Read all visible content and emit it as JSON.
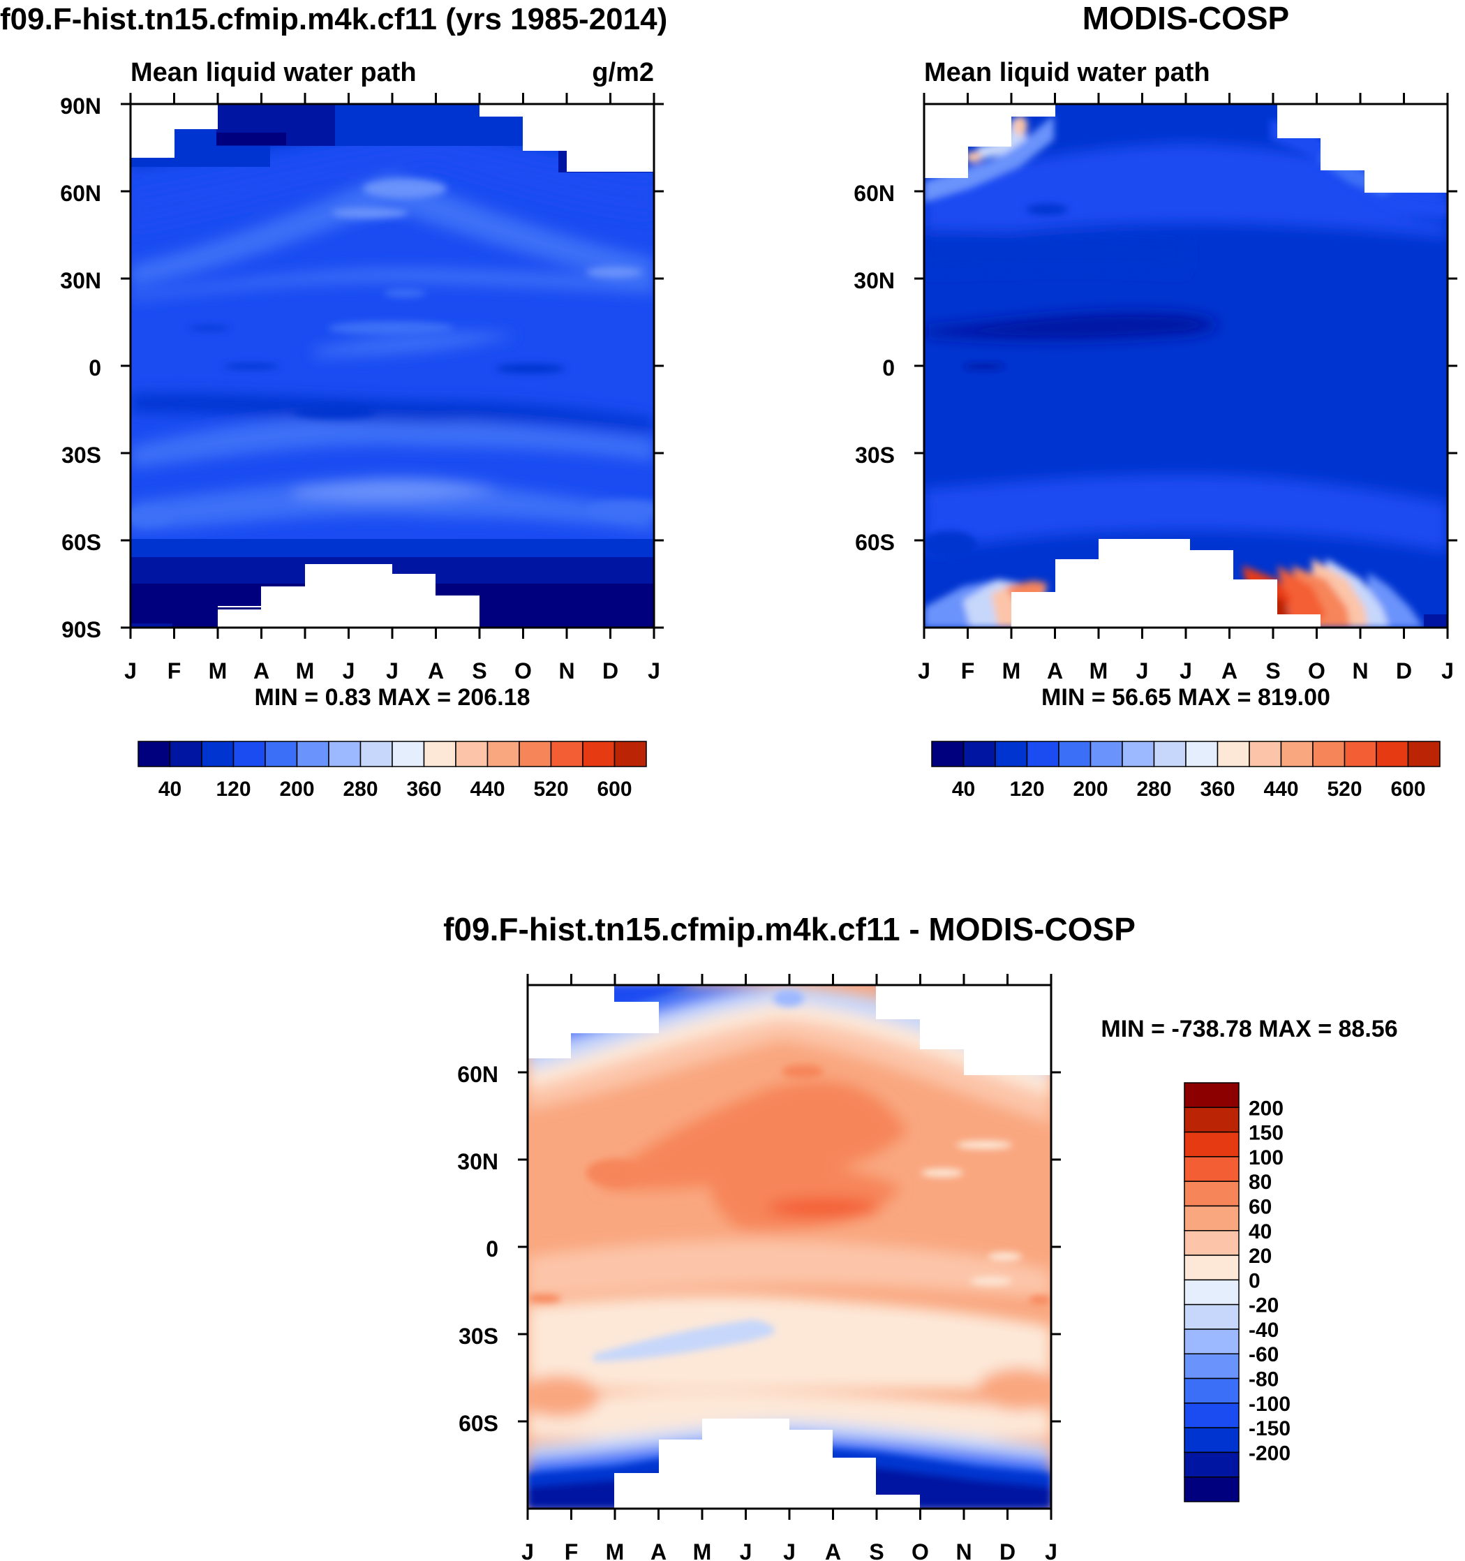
{
  "chart_data": [
    {
      "type": "heatmap",
      "title": "f09.F-hist.tn15.cfmip.m4k.cf11 (yrs 1985-2014)",
      "subtitle": "Mean liquid water path",
      "units": "g/m2",
      "minmax": "MIN =   0.83 MAX = 206.18",
      "x_ticks": [
        "J",
        "F",
        "M",
        "A",
        "M",
        "J",
        "J",
        "A",
        "S",
        "O",
        "N",
        "D",
        "J"
      ],
      "y_ticks": [
        "90N",
        "60N",
        "30N",
        "0",
        "30S",
        "60S",
        "90S"
      ],
      "colorbar_labels": [
        "40",
        "120",
        "200",
        "280",
        "360",
        "440",
        "520",
        "600"
      ],
      "colorbar_levels": [
        40,
        80,
        120,
        160,
        200,
        240,
        280,
        320,
        360,
        400,
        440,
        480,
        520,
        560,
        600
      ],
      "xlim": [
        0,
        12
      ],
      "ylim": [
        -90,
        90
      ]
    },
    {
      "type": "heatmap",
      "title": "MODIS-COSP",
      "subtitle": "Mean liquid water path",
      "minmax": "MIN =  56.65 MAX = 819.00",
      "x_ticks": [
        "J",
        "F",
        "M",
        "A",
        "M",
        "J",
        "J",
        "A",
        "S",
        "O",
        "N",
        "D",
        "J"
      ],
      "y_ticks": [
        "60N",
        "30N",
        "0",
        "30S",
        "60S"
      ],
      "colorbar_labels": [
        "40",
        "120",
        "200",
        "280",
        "360",
        "440",
        "520",
        "600"
      ],
      "colorbar_levels": [
        40,
        80,
        120,
        160,
        200,
        240,
        280,
        320,
        360,
        400,
        440,
        480,
        520,
        560,
        600
      ],
      "xlim": [
        0,
        12
      ],
      "ylim": [
        -90,
        90
      ]
    },
    {
      "type": "heatmap",
      "title": "f09.F-hist.tn15.cfmip.m4k.cf11 - MODIS-COSP",
      "minmax": "MIN = -738.78 MAX =  88.56",
      "x_ticks": [
        "J",
        "F",
        "M",
        "A",
        "M",
        "J",
        "J",
        "A",
        "S",
        "O",
        "N",
        "D",
        "J"
      ],
      "y_ticks": [
        "60N",
        "30N",
        "0",
        "30S",
        "60S"
      ],
      "colorbar_labels": [
        "200",
        "150",
        "100",
        "80",
        "60",
        "40",
        "20",
        "0",
        "-20",
        "-40",
        "-60",
        "-80",
        "-100",
        "-150",
        "-200"
      ],
      "colorbar_levels": [
        -200,
        -150,
        -100,
        -80,
        -60,
        -40,
        -20,
        0,
        20,
        40,
        60,
        80,
        100,
        150,
        200
      ],
      "xlim": [
        0,
        12
      ],
      "ylim": [
        -90,
        90
      ]
    }
  ],
  "colors": {
    "blues": [
      "#00007f",
      "#0016a3",
      "#0034d0",
      "#1a4cf2",
      "#3c6ff7",
      "#6a93fb",
      "#9cb8ff",
      "#c6d7fb",
      "#e4eefd"
    ],
    "reds": [
      "#fde8d8",
      "#fcc5a9",
      "#f9a77f",
      "#f7855a",
      "#f45e35",
      "#e63a12",
      "#bb2404",
      "#8c0000"
    ]
  }
}
